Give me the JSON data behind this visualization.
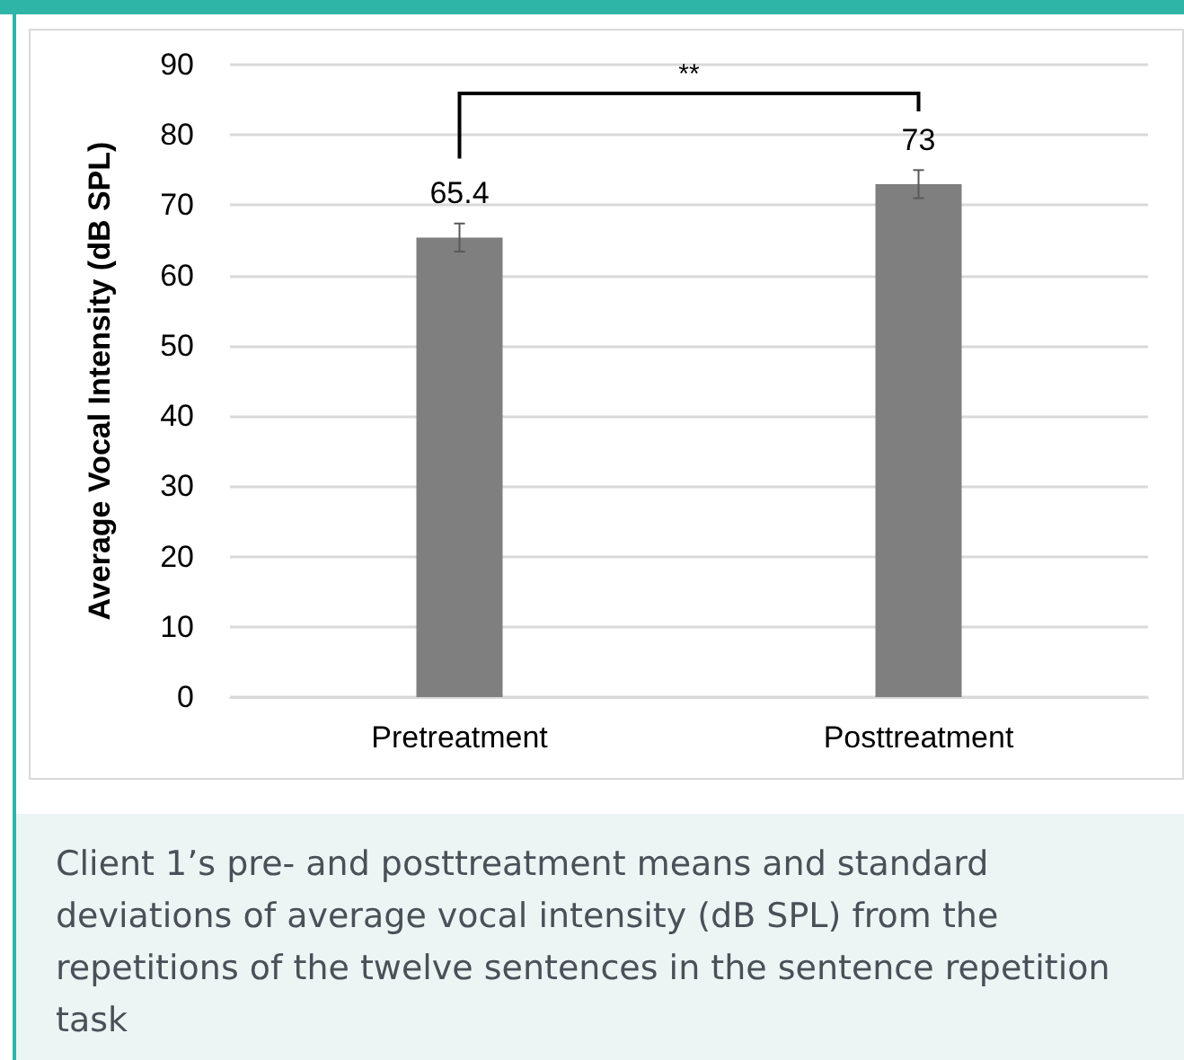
{
  "chart_data": {
    "type": "bar",
    "ylabel": "Average Vocal Intensity (dB SPL)",
    "categories": [
      "Pretreatment",
      "Posttreatment"
    ],
    "values": [
      65.4,
      73
    ],
    "color": "#7f7f7f",
    "errors": [
      2,
      2
    ],
    "data_labels": true,
    "ylim": [
      0,
      90
    ],
    "yticks": [
      0,
      10,
      20,
      30,
      40,
      50,
      60,
      70,
      80,
      90
    ],
    "grid": "y",
    "annotations": [
      "**",
      "Client 1’s pre- and posttreatment means and standard deviations of average vocal intensity (dB SPL) from the repetitions of the twelve sentences in the sentence repetition task"
    ]
  }
}
